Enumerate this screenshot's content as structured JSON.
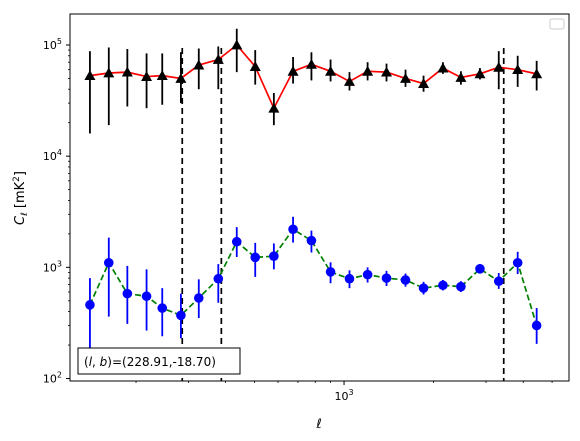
{
  "chart_data": {
    "type": "line",
    "xscale": "log",
    "yscale": "log",
    "xlim": [
      120,
      5700
    ],
    "ylim": [
      95,
      190000
    ],
    "xlabel": "ℓ",
    "ylabel": "C_ℓ [mK²]",
    "x_ticks": [
      {
        "value": 1000,
        "base": "10",
        "exp": "3"
      }
    ],
    "y_ticks": [
      {
        "value": 100,
        "base": "10",
        "exp": "2"
      },
      {
        "value": 1000,
        "base": "10",
        "exp": "3"
      },
      {
        "value": 10000,
        "base": "10",
        "exp": "4"
      },
      {
        "value": 100000,
        "base": "10",
        "exp": "5"
      }
    ],
    "legend": "top-right",
    "annotation": "(l, b)=(228.91,-18.70)",
    "annotation_location": "bottom-left",
    "vlines": [
      286,
      387,
      3440
    ],
    "series": [
      {
        "color": "#ff0000",
        "marker": "triangle",
        "marker_color": "#000000",
        "linestyle": "solid",
        "x": [
          140,
          162,
          187,
          217,
          245,
          283,
          325,
          378,
          436,
          503,
          581,
          674,
          777,
          901,
          1043,
          1200,
          1389,
          1609,
          1850,
          2149,
          2470,
          2862,
          3310,
          3832,
          4438
        ],
        "y": [
          53000,
          56000,
          57000,
          52000,
          53000,
          50000,
          66000,
          74000,
          100000,
          64000,
          27000,
          58000,
          67000,
          58000,
          47000,
          58000,
          57000,
          50000,
          45000,
          62000,
          51000,
          55000,
          63000,
          60000,
          55000
        ],
        "yerr_low": [
          16000,
          19000,
          28000,
          27000,
          29000,
          30000,
          40000,
          40000,
          57000,
          44000,
          19000,
          45000,
          48000,
          47000,
          39000,
          48000,
          47000,
          42000,
          38000,
          55000,
          44000,
          49000,
          40000,
          42000,
          39000
        ],
        "yerr_high": [
          88000,
          95000,
          92000,
          84000,
          84000,
          86000,
          93000,
          97000,
          140000,
          90000,
          37000,
          78000,
          86000,
          74000,
          57000,
          70000,
          68000,
          60000,
          53000,
          70000,
          58000,
          62000,
          88000,
          80000,
          72000
        ]
      },
      {
        "color": "#008000",
        "marker": "circle",
        "marker_color": "#0000ff",
        "linestyle": "dashed",
        "x": [
          140,
          162,
          187,
          217,
          245,
          283,
          325,
          378,
          436,
          503,
          581,
          674,
          777,
          901,
          1043,
          1200,
          1389,
          1609,
          1850,
          2149,
          2470,
          2862,
          3310,
          3832,
          4438
        ],
        "y": [
          460,
          1100,
          580,
          550,
          430,
          370,
          530,
          790,
          1700,
          1230,
          1260,
          2200,
          1740,
          910,
          790,
          860,
          800,
          770,
          650,
          690,
          670,
          970,
          750,
          1100,
          300
        ],
        "yerr_low": [
          180,
          360,
          310,
          270,
          240,
          230,
          350,
          480,
          1240,
          820,
          960,
          1670,
          1360,
          720,
          650,
          730,
          680,
          670,
          570,
          620,
          600,
          880,
          640,
          870,
          205
        ],
        "yerr_high": [
          800,
          1850,
          1030,
          960,
          650,
          580,
          780,
          1070,
          2300,
          1660,
          1640,
          2850,
          2140,
          1110,
          940,
          1000,
          930,
          880,
          740,
          770,
          750,
          1070,
          890,
          1380,
          430
        ]
      }
    ]
  }
}
